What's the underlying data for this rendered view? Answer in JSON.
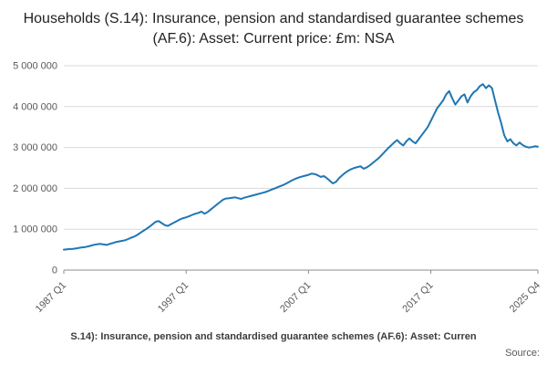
{
  "title": "Households (S.14): Insurance, pension and standardised guarantee schemes (AF.6): Asset: Current price: £m: NSA",
  "footer": {
    "caption": "S.14): Insurance, pension and standardised guarantee schemes (AF.6): Asset: Curren",
    "source_label": "Source:"
  },
  "chart_data": {
    "type": "line",
    "title": "Households (S.14): Insurance, pension and standardised guarantee schemes (AF.6): Asset: Current price: £m: NSA",
    "xlabel": "",
    "ylabel": "",
    "x_start": "1987 Q1",
    "x_end": "2025 Q4",
    "frequency": "quarterly",
    "ylim": [
      0,
      5000000
    ],
    "grid": true,
    "line_color": "#1f77b4",
    "grid_color": "#d9d9d9",
    "axis_color": "#8c8c8c",
    "tick_text_color": "#595959",
    "ytick_values": [
      0,
      1000000,
      2000000,
      3000000,
      4000000,
      5000000
    ],
    "ytick_labels": [
      "0",
      "1 000 000",
      "2 000 000",
      "3 000 000",
      "4 000 000",
      "5 000 000"
    ],
    "xtick_labels": [
      "1987 Q1",
      "1997 Q1",
      "2007 Q1",
      "2017 Q1",
      "2025 Q4"
    ],
    "xtick_indices": [
      0,
      40,
      80,
      120,
      155
    ],
    "values": [
      500000,
      508000,
      515000,
      520000,
      530000,
      545000,
      555000,
      565000,
      580000,
      600000,
      620000,
      635000,
      640000,
      628000,
      615000,
      640000,
      660000,
      685000,
      700000,
      715000,
      730000,
      760000,
      790000,
      820000,
      860000,
      910000,
      960000,
      1010000,
      1060000,
      1120000,
      1180000,
      1200000,
      1150000,
      1100000,
      1080000,
      1120000,
      1160000,
      1200000,
      1240000,
      1270000,
      1290000,
      1320000,
      1350000,
      1380000,
      1400000,
      1430000,
      1380000,
      1420000,
      1480000,
      1540000,
      1600000,
      1660000,
      1720000,
      1750000,
      1760000,
      1770000,
      1780000,
      1760000,
      1740000,
      1770000,
      1790000,
      1810000,
      1830000,
      1850000,
      1870000,
      1890000,
      1910000,
      1940000,
      1970000,
      2000000,
      2030000,
      2060000,
      2090000,
      2130000,
      2170000,
      2210000,
      2240000,
      2270000,
      2290000,
      2310000,
      2330000,
      2360000,
      2350000,
      2320000,
      2280000,
      2300000,
      2250000,
      2180000,
      2120000,
      2160000,
      2250000,
      2320000,
      2380000,
      2430000,
      2470000,
      2500000,
      2520000,
      2540000,
      2480000,
      2510000,
      2560000,
      2620000,
      2680000,
      2740000,
      2820000,
      2900000,
      2980000,
      3050000,
      3120000,
      3180000,
      3100000,
      3050000,
      3150000,
      3220000,
      3150000,
      3100000,
      3200000,
      3300000,
      3400000,
      3500000,
      3650000,
      3800000,
      3950000,
      4050000,
      4150000,
      4300000,
      4380000,
      4200000,
      4050000,
      4150000,
      4250000,
      4300000,
      4100000,
      4250000,
      4350000,
      4400000,
      4500000,
      4550000,
      4450000,
      4520000,
      4450000,
      4150000,
      3850000,
      3600000,
      3300000,
      3150000,
      3200000,
      3100000,
      3050000,
      3120000,
      3060000,
      3020000,
      3000000,
      3010000,
      3030000,
      3020000
    ]
  }
}
